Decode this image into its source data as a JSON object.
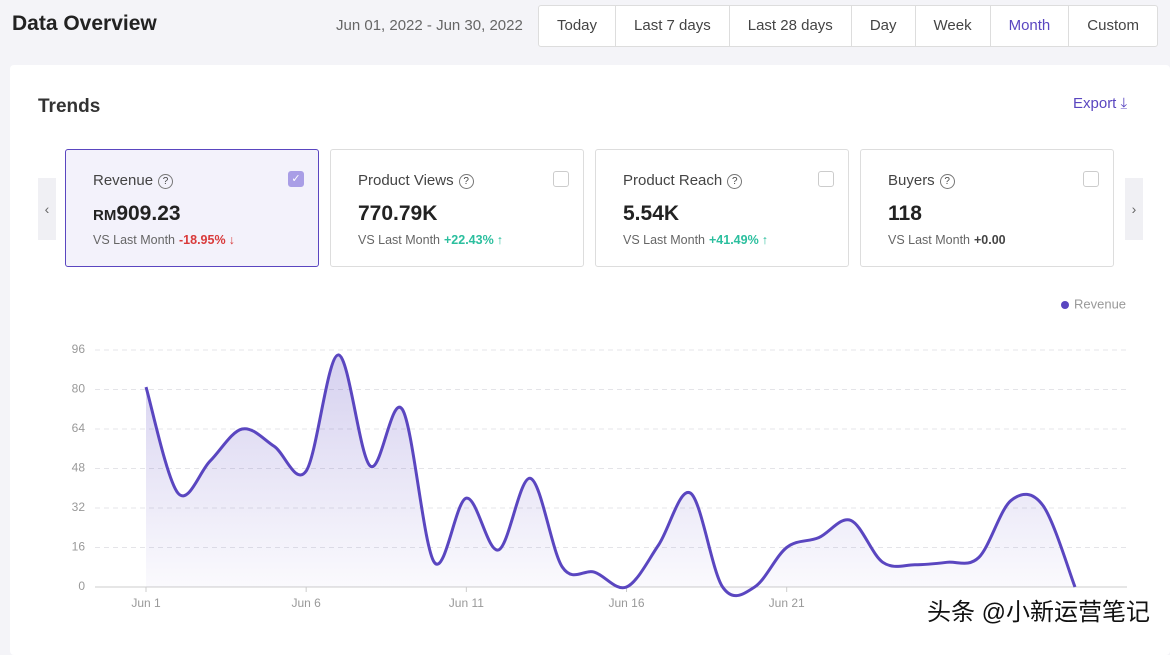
{
  "header": {
    "title": "Data Overview",
    "date_range": "Jun 01, 2022 - Jun 30, 2022",
    "tabs": [
      "Today",
      "Last 7 days",
      "Last 28 days",
      "Day",
      "Week",
      "Month",
      "Custom"
    ],
    "active_tab": 5
  },
  "panel": {
    "title": "Trends",
    "export": "Export"
  },
  "cards": [
    {
      "label": "Revenue",
      "prefix": "RM",
      "value": "909.23",
      "compare": "VS Last Month",
      "change": "-18.95%",
      "trend": "down",
      "checked": true
    },
    {
      "label": "Product Views",
      "value": "770.79K",
      "compare": "VS Last Month",
      "change": "+22.43%",
      "trend": "up",
      "checked": false
    },
    {
      "label": "Product Reach",
      "value": "5.54K",
      "compare": "VS Last Month",
      "change": "+41.49%",
      "trend": "up",
      "checked": false
    },
    {
      "label": "Buyers",
      "value": "118",
      "compare": "VS Last Month",
      "change": "+0.00",
      "trend": "flat",
      "checked": false
    }
  ],
  "chart_data": {
    "type": "line",
    "categories": [
      "Jun 1",
      null,
      null,
      null,
      null,
      "Jun 6",
      null,
      null,
      null,
      null,
      "Jun 11",
      null,
      null,
      null,
      null,
      "Jun 16",
      null,
      null,
      null,
      null,
      "Jun 21",
      null,
      null,
      null,
      null,
      null,
      null,
      null,
      null,
      null
    ],
    "series": [
      {
        "name": "Revenue",
        "color": "#5a46c0",
        "values": [
          81,
          38,
          51,
          64,
          57,
          47,
          94,
          49,
          72,
          10,
          36,
          15,
          44,
          8,
          6,
          0,
          17,
          38,
          0,
          0,
          16,
          20,
          27,
          10,
          9,
          10,
          12,
          35,
          33,
          0
        ]
      }
    ],
    "ylim": [
      0,
      96
    ],
    "yticks": [
      0,
      16,
      32,
      48,
      64,
      80,
      96
    ],
    "grid": true
  },
  "watermark": "头条 @小新运营笔记"
}
